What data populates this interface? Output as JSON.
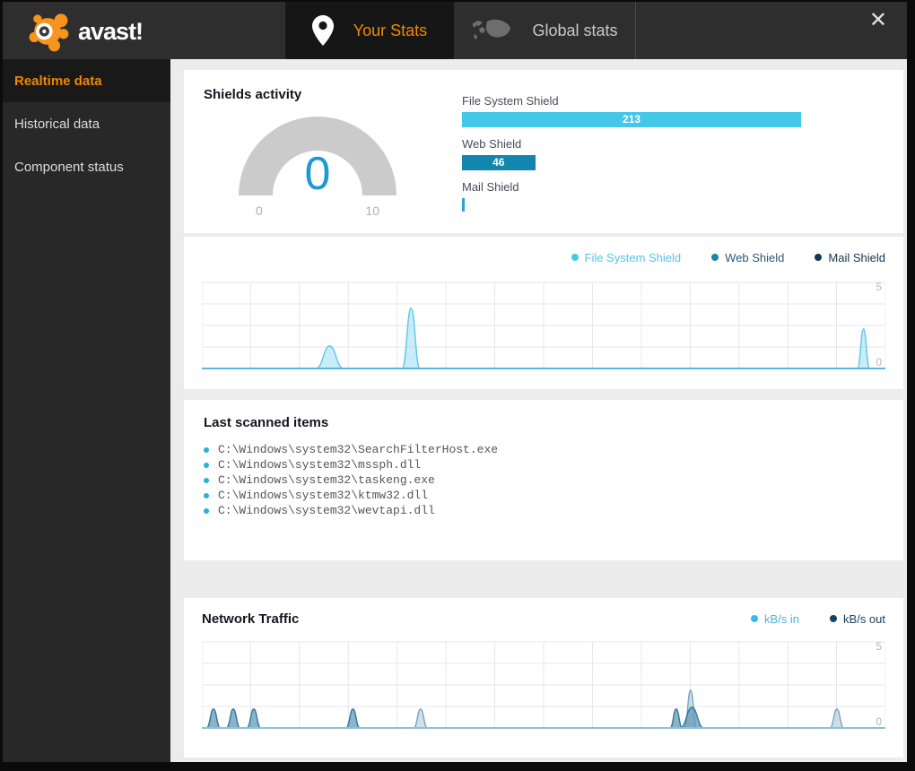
{
  "header": {
    "logo_text": "avast!",
    "tabs": [
      {
        "label": "Your Stats",
        "active": true,
        "icon": "location-pin-icon"
      },
      {
        "label": "Global stats",
        "active": false,
        "icon": "world-map-icon"
      }
    ],
    "close_label": "✕"
  },
  "sidebar": {
    "items": [
      {
        "label": "Realtime data",
        "active": true
      },
      {
        "label": "Historical data",
        "active": false
      },
      {
        "label": "Component status",
        "active": false
      }
    ]
  },
  "shields": {
    "title": "Shields activity",
    "gauge": {
      "value": "0",
      "min": "0",
      "max": "10",
      "value_color": "#1e9ad0",
      "arc_color": "#cbcbcb"
    },
    "bar_axis_max": 213,
    "bars": [
      {
        "label": "File System Shield",
        "value": 213,
        "display": "213",
        "color": "#45c7e8"
      },
      {
        "label": "Web Shield",
        "value": 46,
        "display": "46",
        "color": "#1286ad"
      },
      {
        "label": "Mail Shield",
        "value": 0,
        "display": "",
        "color": "#29a8cf"
      }
    ]
  },
  "scans": {
    "title": "Last scanned items",
    "items": [
      "C:\\Windows\\system32\\SearchFilterHost.exe",
      "C:\\Windows\\system32\\mssph.dll",
      "C:\\Windows\\system32\\taskeng.exe",
      "C:\\Windows\\system32\\ktmw32.dll",
      "C:\\Windows\\system32\\wevtapi.dll"
    ]
  },
  "network": {
    "title": "Network Traffic"
  },
  "chart_data": [
    {
      "type": "area",
      "title": "Shields activity timeline",
      "ylim": [
        0,
        5
      ],
      "yticks": [
        "5",
        "0"
      ],
      "grid": {
        "cols": 14,
        "rows": 4,
        "on": true
      },
      "legend_position": "top-right",
      "baseline_color": "#5ab7d6",
      "legend": [
        {
          "label": "File System Shield",
          "dot": "#45c7e8",
          "text": "#54c5e6"
        },
        {
          "label": "Web Shield",
          "dot": "#1a86ab",
          "text": "#2a5878"
        },
        {
          "label": "Mail Shield",
          "dot": "#0d3a54",
          "text": "#16364a"
        }
      ],
      "series": [
        {
          "name": "File System Shield",
          "color": "#5fc8e8",
          "fill": "rgba(135,214,239,0.45)",
          "spikes": [
            {
              "t": 0.187,
              "v": 1.3,
              "w": 0.02
            },
            {
              "t": 0.306,
              "v": 3.5,
              "w": 0.013
            },
            {
              "t": 0.968,
              "v": 2.3,
              "w": 0.009
            }
          ]
        },
        {
          "name": "Web Shield",
          "color": "#1a86ab",
          "fill": "rgba(26,134,171,0.5)",
          "spikes": []
        },
        {
          "name": "Mail Shield",
          "color": "#0d3a54",
          "fill": "rgba(13,58,84,0.5)",
          "spikes": []
        }
      ]
    },
    {
      "type": "area",
      "title": "Network Traffic",
      "ylim": [
        0,
        5
      ],
      "yticks": [
        "5",
        "0"
      ],
      "grid": {
        "cols": 14,
        "rows": 4,
        "on": true
      },
      "legend_position": "top-right",
      "baseline_color": "#8fc0d8",
      "legend": [
        {
          "label": "kB/s in",
          "dot": "#35b9e9",
          "text": "#4db4dd"
        },
        {
          "label": "kB/s out",
          "dot": "#14425f",
          "text": "#1b3f57"
        }
      ],
      "series": [
        {
          "name": "kB/s in",
          "color": "#74a9c4",
          "fill": "rgba(178,196,207,0.55)",
          "spikes": [
            {
              "t": 0.32,
              "v": 1.1,
              "w": 0.01
            },
            {
              "t": 0.715,
              "v": 2.2,
              "w": 0.009
            },
            {
              "t": 0.929,
              "v": 1.1,
              "w": 0.01
            }
          ]
        },
        {
          "name": "kB/s out",
          "color": "#3579a0",
          "fill": "rgba(94,150,181,0.72)",
          "spikes": [
            {
              "t": 0.017,
              "v": 1.1,
              "w": 0.01
            },
            {
              "t": 0.046,
              "v": 1.1,
              "w": 0.01
            },
            {
              "t": 0.076,
              "v": 1.1,
              "w": 0.01
            },
            {
              "t": 0.221,
              "v": 1.1,
              "w": 0.01
            },
            {
              "t": 0.694,
              "v": 1.1,
              "w": 0.009
            },
            {
              "t": 0.717,
              "v": 1.2,
              "w": 0.017
            }
          ]
        }
      ]
    }
  ]
}
